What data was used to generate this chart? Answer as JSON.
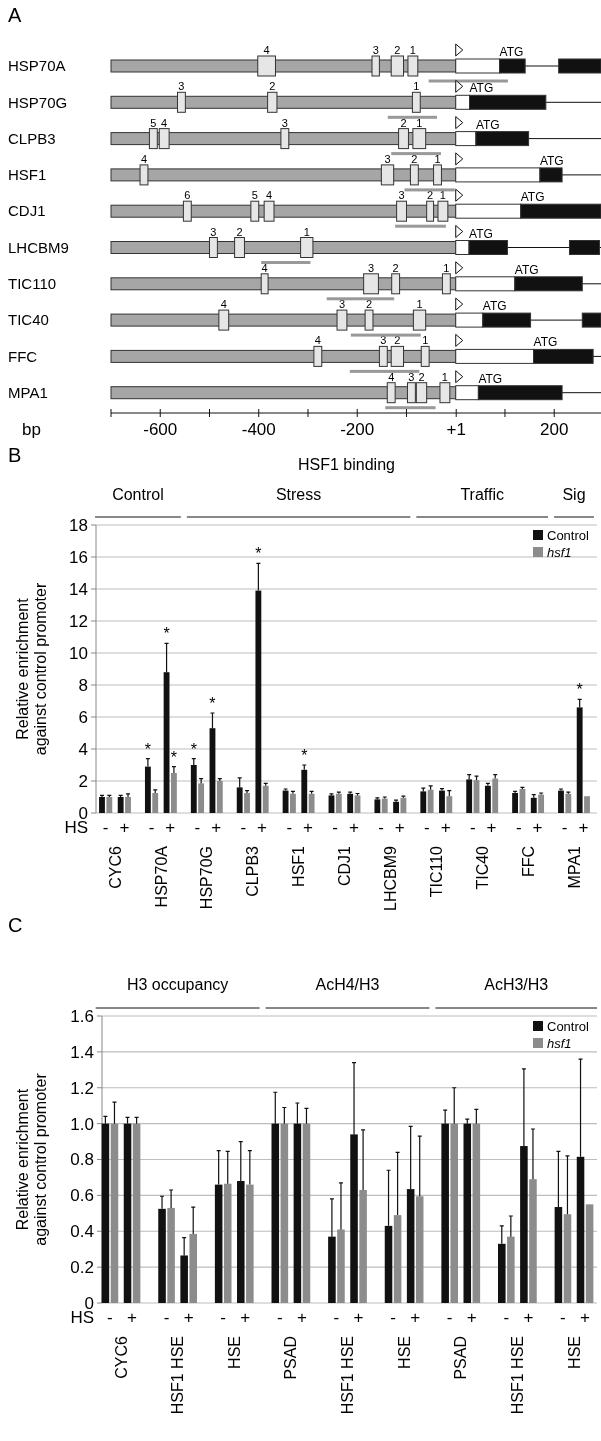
{
  "chart_data": [
    {
      "type": "bar",
      "orientation": "horizontal",
      "xlabel": "bp",
      "categories": [
        "HSP70A",
        "HSP70G",
        "CLPB3",
        "HSF1",
        "CDJ1",
        "LHCBM9",
        "TIC110",
        "TIC40",
        "FFC",
        "MPA1"
      ],
      "xlim": [
        -700,
        295
      ],
      "xticks": [
        {
          "value": -700,
          "label": null
        },
        -600,
        {
          "value": -500,
          "label": null
        },
        -400,
        {
          "value": -300,
          "label": null
        },
        -200,
        {
          "value": -100,
          "label": null
        },
        {
          "value": 1,
          "label": "+1"
        },
        {
          "value": 100,
          "label": null
        },
        200
      ],
      "series": [
        {
          "color": "#a6a6a6",
          "base": [
            -700,
            -700,
            -700,
            -700,
            -700,
            -700,
            -700,
            -700,
            -700,
            -700
          ],
          "values": [
            700,
            700,
            700,
            700,
            700,
            700,
            700,
            700,
            700,
            700
          ]
        },
        {
          "color": "#ffffff",
          "base": [
            0,
            0,
            0,
            0,
            0,
            0,
            0,
            0,
            0,
            0
          ],
          "values": [
            89,
            28,
            41,
            171,
            132,
            27,
            120,
            55,
            158,
            46
          ]
        },
        {
          "color": "#111111",
          "base": [
            89,
            28,
            41,
            171,
            132,
            27,
            120,
            55,
            158,
            46
          ],
          "values": [
            52,
            155,
            107,
            45,
            163,
            78,
            137,
            97,
            121,
            170
          ]
        },
        {
          "color": "#111111",
          "base": [
            209,
            null,
            null,
            null,
            null,
            231,
            null,
            257,
            null,
            null
          ],
          "values": [
            86,
            null,
            null,
            null,
            null,
            61,
            null,
            38,
            null,
            null
          ]
        },
        {
          "name": "1",
          "color": "#e6e6e6",
          "base": [
            -97,
            -88,
            -87,
            -45,
            -36,
            -315,
            -27,
            -86,
            -70,
            -32
          ],
          "values": [
            20,
            16,
            26,
            16,
            20,
            25,
            16,
            25,
            16,
            20
          ]
        },
        {
          "name": "2",
          "color": "#e6e6e6",
          "base": [
            -131,
            -382,
            -116,
            -92,
            -59,
            -449,
            -130,
            -184,
            -131,
            -80
          ],
          "values": [
            25,
            19,
            20,
            16,
            14,
            20,
            16,
            16,
            25,
            21
          ]
        },
        {
          "name": "3",
          "color": "#e6e6e6",
          "base": [
            -170,
            -565,
            -355,
            -151,
            -120,
            -500,
            -187,
            -241,
            -155,
            -98
          ],
          "values": [
            15,
            16,
            16,
            25,
            20,
            16,
            30,
            20,
            16,
            16
          ]
        },
        {
          "name": "4",
          "color": "#e6e6e6",
          "base": [
            -402,
            null,
            -602,
            -641,
            -389,
            null,
            -395,
            -481,
            -288,
            -139
          ],
          "values": [
            36,
            null,
            20,
            16,
            20,
            null,
            14,
            20,
            16,
            16
          ]
        },
        {
          "name": "5",
          "color": "#e6e6e6",
          "base": [
            null,
            null,
            -622,
            null,
            -416,
            null,
            null,
            null,
            null,
            null
          ],
          "values": [
            null,
            null,
            16,
            null,
            16,
            null,
            null,
            null,
            null,
            null
          ]
        },
        {
          "name": "6",
          "color": "#e6e6e6",
          "base": [
            null,
            null,
            null,
            null,
            -553,
            null,
            null,
            null,
            null,
            null
          ],
          "values": [
            null,
            null,
            null,
            null,
            16,
            null,
            null,
            null,
            null,
            null
          ]
        },
        {
          "color": "#999999",
          "base": [
            -55,
            -138,
            -131,
            -104,
            -123,
            -395,
            -262,
            -213,
            -215,
            -143
          ],
          "values": [
            161,
            100,
            101,
            102,
            103,
            100,
            137,
            142,
            141,
            102
          ]
        }
      ],
      "annotations": [
        "A",
        {
          "text": "ATG",
          "x": 89,
          "y": "HSP70A"
        },
        {
          "text": "ATG",
          "x": 28,
          "y": "HSP70G"
        },
        {
          "text": "ATG",
          "x": 41,
          "y": "CLPB3"
        },
        {
          "text": "ATG",
          "x": 171,
          "y": "HSF1"
        },
        {
          "text": "ATG",
          "x": 132,
          "y": "CDJ1"
        },
        {
          "text": "ATG",
          "x": 27,
          "y": "LHCBM9"
        },
        {
          "text": "ATG",
          "x": 120,
          "y": "TIC110"
        },
        {
          "text": "ATG",
          "x": 55,
          "y": "TIC40"
        },
        {
          "text": "ATG",
          "x": 158,
          "y": "FFC"
        },
        {
          "text": "ATG",
          "x": 46,
          "y": "MPA1"
        }
      ]
    },
    {
      "type": "bar",
      "title": "HSF1 binding",
      "xlabel": "HS",
      "ylabel": "Relative enrichment\nagainst control promoter",
      "categories": [
        "-",
        "+",
        "-",
        "+",
        "-",
        "+",
        "-",
        "+",
        "-",
        "+",
        "-",
        "+",
        "-",
        "+",
        "-",
        "+",
        "-",
        "+",
        "-",
        "+",
        "-",
        "+"
      ],
      "ylim": [
        0,
        18
      ],
      "yticks": [
        0,
        2,
        4,
        6,
        8,
        10,
        12,
        14,
        16,
        18
      ],
      "grid": "y",
      "legend": "top right",
      "series": [
        {
          "name": "Control",
          "color": "#111111",
          "values": [
            1.0,
            1.0,
            2.9,
            8.8,
            3.0,
            5.3,
            1.6,
            13.9,
            1.4,
            2.7,
            1.1,
            1.2,
            0.85,
            0.7,
            1.35,
            1.4,
            2.1,
            1.7,
            1.25,
            0.95,
            1.4,
            6.6
          ],
          "errors": [
            0.1,
            0.1,
            0.5,
            1.8,
            0.4,
            0.95,
            0.6,
            1.7,
            0.1,
            0.3,
            0.1,
            0.1,
            0.1,
            0.1,
            0.2,
            0.12,
            0.3,
            0.15,
            0.1,
            0.2,
            0.1,
            0.5
          ],
          "value_labels": [
            null,
            null,
            "*",
            "*",
            "*",
            "*",
            null,
            "*",
            null,
            "*",
            null,
            null,
            null,
            null,
            null,
            null,
            null,
            null,
            null,
            null,
            null,
            "*"
          ]
        },
        {
          "name": "hsf1",
          "color": "#8c8c8c",
          "values": [
            1.0,
            1.0,
            1.25,
            2.5,
            1.85,
            2.0,
            1.25,
            1.7,
            1.2,
            1.2,
            1.2,
            1.1,
            0.9,
            0.95,
            1.45,
            1.05,
            2.05,
            2.15,
            1.5,
            1.15,
            1.2,
            1.05
          ],
          "errors": [
            0.1,
            0.2,
            0.2,
            0.4,
            0.3,
            0.15,
            0.15,
            0.15,
            0.15,
            0.15,
            0.1,
            0.12,
            0.1,
            0.1,
            0.25,
            0.35,
            0.25,
            0.25,
            0.1,
            0.1,
            0.1,
            null
          ],
          "value_labels": [
            null,
            null,
            null,
            "*",
            null,
            null,
            null,
            null,
            null,
            null,
            null,
            null,
            null,
            null,
            null,
            null,
            null,
            null,
            null,
            null,
            null,
            null
          ]
        }
      ],
      "annotations": [
        "B",
        "Control",
        "Stress",
        "Traffic",
        "Sig",
        "CYC6",
        "HSP70A",
        "HSP70G",
        "CLPB3",
        "HSF1",
        "CDJ1",
        "LHCBM9",
        "TIC110",
        "TIC40",
        "FFC",
        "MPA1"
      ]
    },
    {
      "type": "bar",
      "xlabel": "HS",
      "ylabel": "Relative enrichment\nagainst control promoter",
      "categories": [
        "-",
        "+",
        "-",
        "+",
        "-",
        "+",
        "-",
        "+",
        "-",
        "+",
        "-",
        "+",
        "-",
        "+",
        "-",
        "+",
        "-",
        "+"
      ],
      "ylim": [
        0,
        1.6
      ],
      "yticks": [
        0,
        0.2,
        0.4,
        0.6,
        0.8,
        {
          "value": 1,
          "label": "1.0"
        },
        1.2,
        1.4,
        1.6
      ],
      "grid": "y",
      "legend": "top right",
      "series": [
        {
          "name": "Control",
          "color": "#111111",
          "values": [
            1.0,
            1.0,
            0.525,
            0.265,
            0.66,
            0.68,
            1.0,
            1.0,
            0.37,
            0.94,
            0.43,
            0.635,
            1.0,
            1.0,
            0.33,
            0.875,
            0.535,
            0.815
          ],
          "errors": [
            0.04,
            0.035,
            0.07,
            0.1,
            0.19,
            0.22,
            0.175,
            0.115,
            0.21,
            0.4,
            0.31,
            0.35,
            0.075,
            0.025,
            0.1,
            0.43,
            0.31,
            0.545
          ]
        },
        {
          "name": "hsf1",
          "color": "#8c8c8c",
          "values": [
            1.0,
            1.0,
            0.53,
            0.385,
            0.665,
            0.66,
            1.0,
            1.0,
            0.41,
            0.63,
            0.49,
            0.595,
            1.0,
            1.0,
            0.37,
            0.69,
            0.495,
            0.55
          ],
          "errors": [
            0.12,
            0.035,
            0.1,
            0.15,
            0.18,
            0.19,
            0.09,
            0.085,
            0.26,
            0.335,
            0.35,
            0.335,
            0.2,
            0.08,
            0.115,
            0.28,
            0.325,
            null
          ]
        }
      ],
      "annotations": [
        "C",
        "H3 occupancy",
        "AcH4/H3",
        "AcH3/H3",
        "CYC6",
        "HSF1 HSE",
        "HSE",
        "PSAD",
        "HSF1 HSE",
        "HSE",
        "PSAD",
        "HSF1 HSE",
        "HSE"
      ]
    }
  ]
}
